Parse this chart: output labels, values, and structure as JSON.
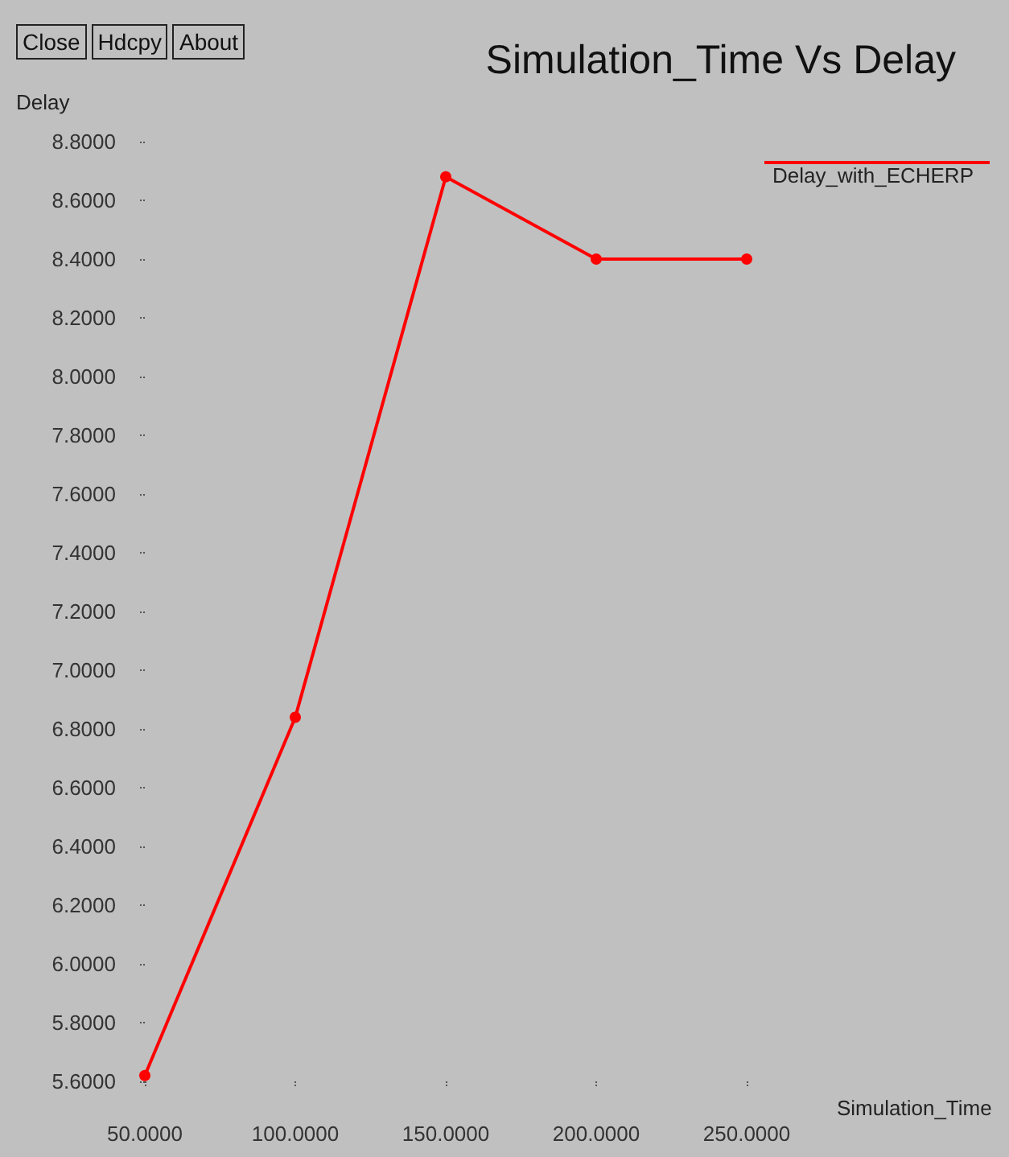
{
  "chart_data": {
    "type": "line",
    "title": "Simulation_Time Vs Delay",
    "xlabel": "Simulation_Time",
    "ylabel": "Delay",
    "x": [
      50,
      100,
      150,
      200,
      250
    ],
    "series": [
      {
        "name": "Delay_with_ECHERP",
        "color": "#ff0000",
        "values": [
          5.62,
          6.84,
          8.68,
          8.4,
          8.4
        ]
      }
    ],
    "xlim": [
      50,
      250
    ],
    "ylim": [
      5.6,
      8.8
    ],
    "xticks": [
      {
        "value": 50,
        "label": "50.0000"
      },
      {
        "value": 100,
        "label": "100.0000"
      },
      {
        "value": 150,
        "label": "150.0000"
      },
      {
        "value": 200,
        "label": "200.0000"
      },
      {
        "value": 250,
        "label": "250.0000"
      }
    ],
    "yticks": [
      {
        "value": 5.6,
        "label": "5.6000"
      },
      {
        "value": 5.8,
        "label": "5.8000"
      },
      {
        "value": 6.0,
        "label": "6.0000"
      },
      {
        "value": 6.2,
        "label": "6.2000"
      },
      {
        "value": 6.4,
        "label": "6.4000"
      },
      {
        "value": 6.6,
        "label": "6.6000"
      },
      {
        "value": 6.8,
        "label": "6.8000"
      },
      {
        "value": 7.0,
        "label": "7.0000"
      },
      {
        "value": 7.2,
        "label": "7.2000"
      },
      {
        "value": 7.4,
        "label": "7.4000"
      },
      {
        "value": 7.6,
        "label": "7.6000"
      },
      {
        "value": 7.8,
        "label": "7.8000"
      },
      {
        "value": 8.0,
        "label": "8.0000"
      },
      {
        "value": 8.2,
        "label": "8.2000"
      },
      {
        "value": 8.4,
        "label": "8.4000"
      },
      {
        "value": 8.6,
        "label": "8.6000"
      },
      {
        "value": 8.8,
        "label": "8.8000"
      }
    ],
    "annotations": [
      "Close",
      "Hdcpy",
      "About"
    ],
    "grid": false,
    "legend": "top right",
    "marker": "circle",
    "line_style": "solid"
  }
}
